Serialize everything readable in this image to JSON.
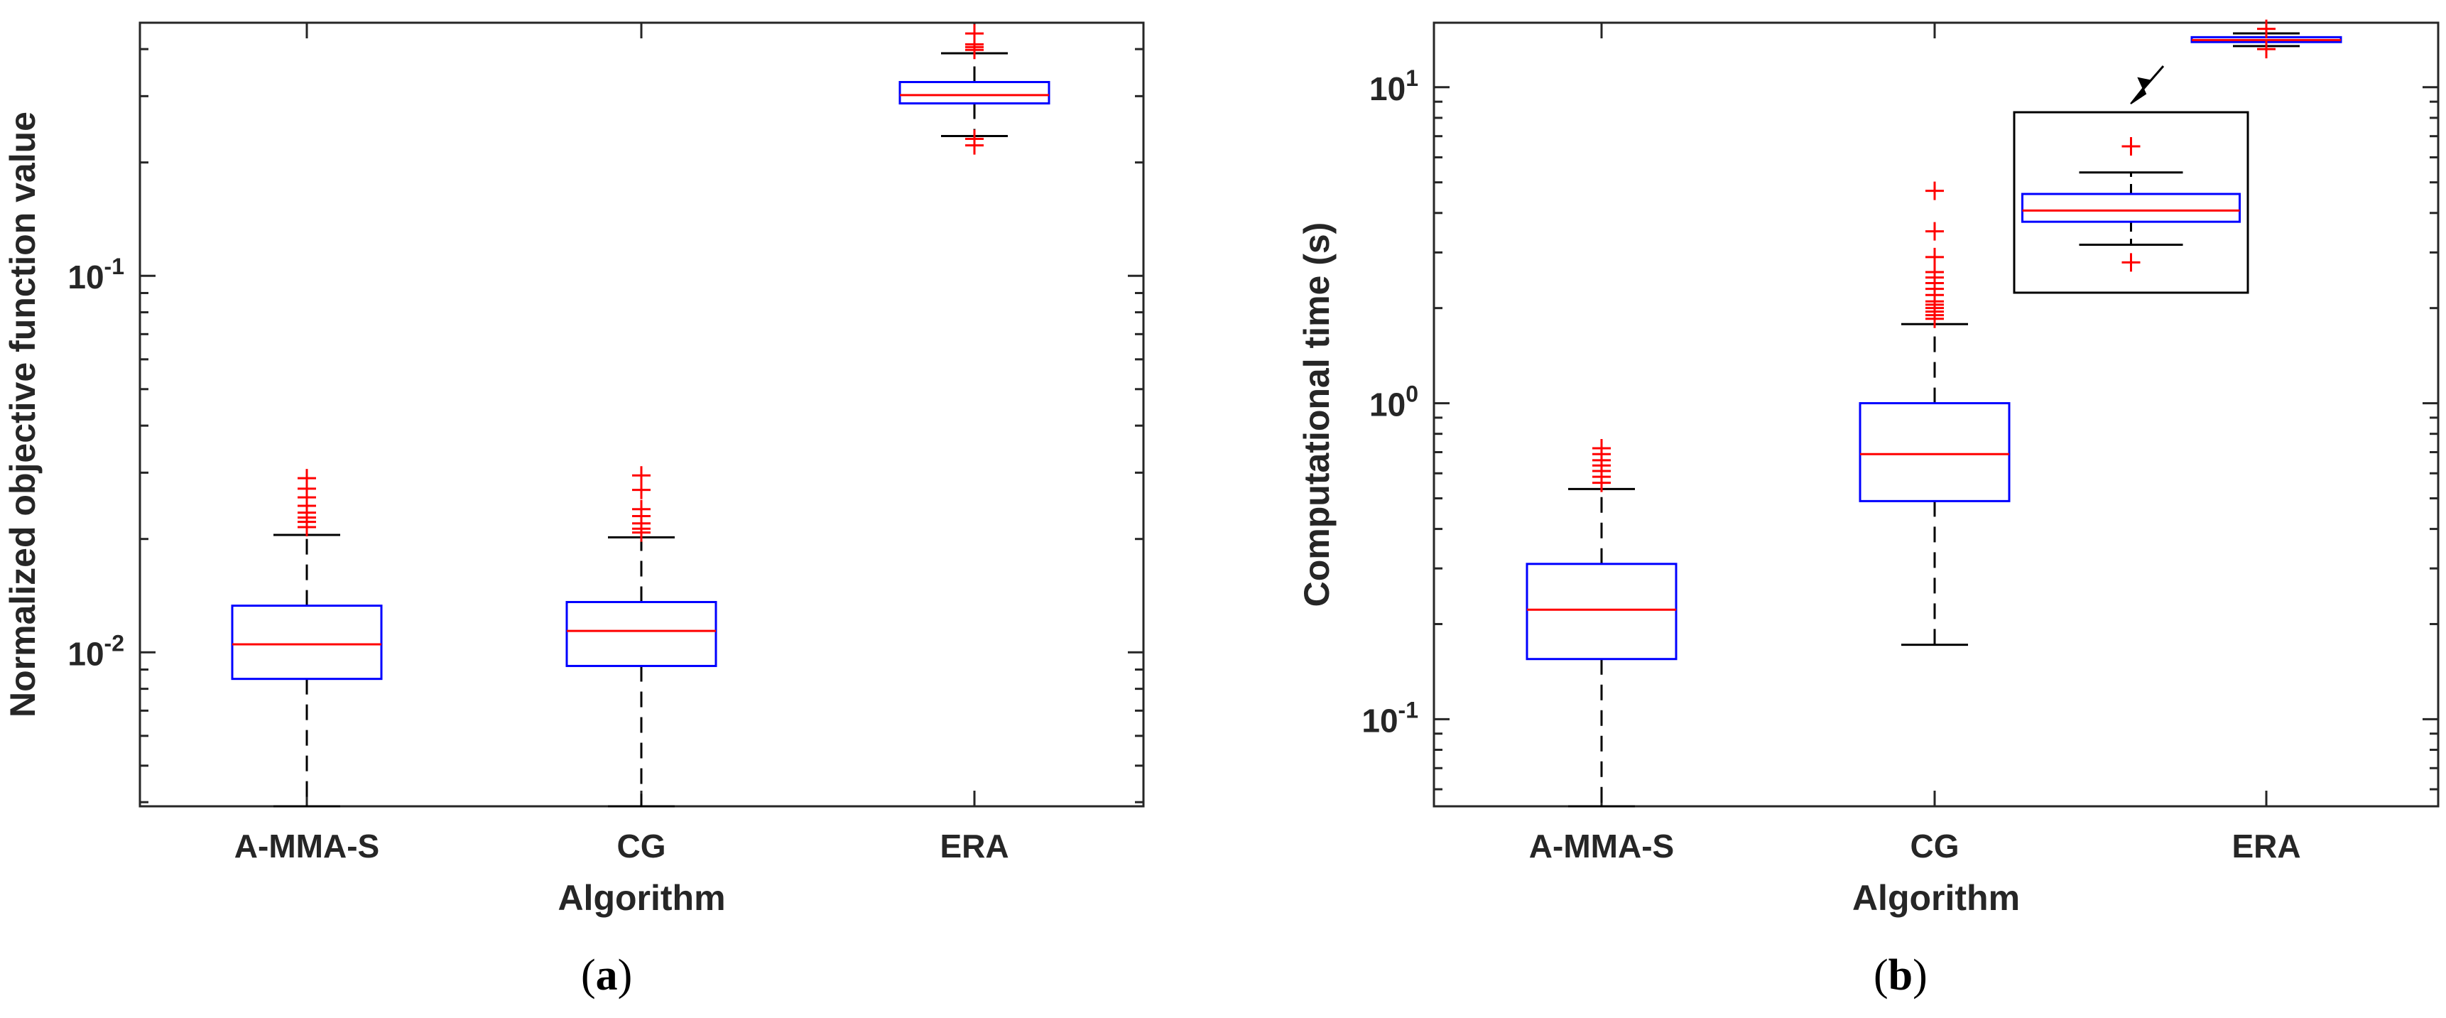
{
  "chart_data": [
    {
      "type": "box",
      "panel": "a",
      "panel_label": "a",
      "xlabel": "Algorithm",
      "ylabel": "Normalized objective function value",
      "yscale": "log",
      "ylim": [
        0.0039,
        0.47
      ],
      "yticks": [
        {
          "value": 0.01,
          "base": "10",
          "exp": "-2"
        },
        {
          "value": 0.1,
          "base": "10",
          "exp": "-1"
        }
      ],
      "categories": [
        "A-MMA-S",
        "CG",
        "ERA"
      ],
      "boxes": [
        {
          "name": "A-MMA-S",
          "q1": 0.0085,
          "median": 0.0105,
          "q3": 0.0133,
          "whisker_low": 0.0039,
          "whisker_high": 0.0205,
          "outliers": [
            0.0215,
            0.0222,
            0.0228,
            0.0235,
            0.0245,
            0.0258,
            0.0272,
            0.029
          ]
        },
        {
          "name": "CG",
          "q1": 0.0092,
          "median": 0.0114,
          "q3": 0.0136,
          "whisker_low": 0.0039,
          "whisker_high": 0.0202,
          "outliers": [
            0.0208,
            0.0213,
            0.022,
            0.023,
            0.024,
            0.027,
            0.0295
          ]
        },
        {
          "name": "ERA",
          "q1": 0.287,
          "median": 0.302,
          "q3": 0.327,
          "whisker_low": 0.235,
          "whisker_high": 0.39,
          "outliers": [
            0.222,
            0.231,
            0.398,
            0.405,
            0.412,
            0.44
          ]
        }
      ]
    },
    {
      "type": "box",
      "panel": "b",
      "panel_label": "b",
      "xlabel": "Algorithm",
      "ylabel": "Computational time (s)",
      "yscale": "log",
      "ylim": [
        0.053,
        16
      ],
      "yticks": [
        {
          "value": 0.1,
          "base": "10",
          "exp": "-1"
        },
        {
          "value": 1,
          "base": "10",
          "exp": "0"
        },
        {
          "value": 10,
          "base": "10",
          "exp": "1"
        }
      ],
      "categories": [
        "A-MMA-S",
        "CG",
        "ERA"
      ],
      "boxes": [
        {
          "name": "A-MMA-S",
          "q1": 0.155,
          "median": 0.222,
          "q3": 0.31,
          "whisker_low": 0.053,
          "whisker_high": 0.535,
          "outliers": [
            0.56,
            0.585,
            0.61,
            0.635,
            0.66,
            0.69,
            0.72
          ]
        },
        {
          "name": "CG",
          "q1": 0.49,
          "median": 0.69,
          "q3": 1.0,
          "whisker_low": 0.172,
          "whisker_high": 1.78,
          "outliers": [
            1.85,
            1.9,
            1.95,
            2.0,
            2.05,
            2.1,
            2.2,
            2.3,
            2.4,
            2.5,
            2.6,
            2.9,
            3.5,
            4.7
          ]
        },
        {
          "name": "ERA",
          "q1": 13.9,
          "median": 14.1,
          "q3": 14.4,
          "whisker_low": 13.5,
          "whisker_high": 14.8,
          "outliers": [
            13.2,
            15.3
          ]
        }
      ],
      "inset": {
        "description": "zoomed ERA box",
        "box": "ERA"
      }
    }
  ]
}
